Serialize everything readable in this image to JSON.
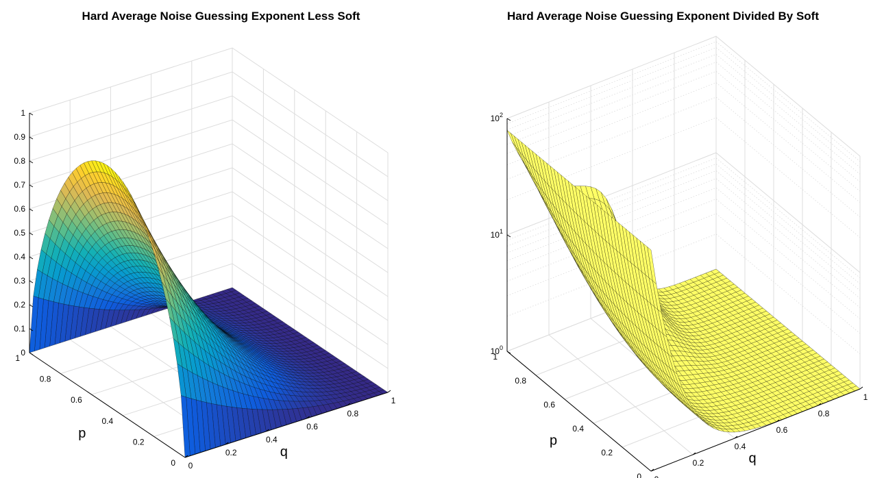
{
  "chart_data": [
    {
      "type": "surface",
      "title": "Hard Average Noise Guessing Exponent Less Soft",
      "xlabel": "q",
      "ylabel": "p",
      "zlabel": "",
      "xlim": [
        0,
        1
      ],
      "ylim": [
        0,
        1
      ],
      "zlim": [
        0,
        1
      ],
      "zscale": "linear",
      "colormap": "parula",
      "grid": true,
      "x_ticks": [
        "0",
        "0.2",
        "0.4",
        "0.6",
        "0.8",
        "1"
      ],
      "y_ticks": [
        "0",
        "0.2",
        "0.4",
        "0.6",
        "0.8",
        "1"
      ],
      "z_ticks": [
        "0",
        "0.1",
        "0.2",
        "0.3",
        "0.4",
        "0.5",
        "0.6",
        "0.7",
        "0.8",
        "0.9",
        "1"
      ],
      "corner_values": [
        {
          "q": 0,
          "p": 0,
          "z": 0
        },
        {
          "q": 1,
          "p": 0,
          "z": 0
        },
        {
          "q": 0,
          "p": 1,
          "z": 0.25
        },
        {
          "q": 1,
          "p": 1,
          "z": 0
        },
        {
          "q": 0,
          "p": 0.5,
          "z": 1.0
        },
        {
          "q": 0.5,
          "p": 0.5,
          "z": 0.5
        }
      ]
    },
    {
      "type": "surface",
      "title": "Hard Average Noise Guessing Exponent Divided By Soft",
      "xlabel": "q",
      "ylabel": "p",
      "zlabel": "",
      "xlim": [
        0,
        1
      ],
      "ylim": [
        0,
        1
      ],
      "zlim": [
        1,
        100
      ],
      "zscale": "log",
      "surface_color": "#ffff66",
      "grid": true,
      "x_ticks": [
        "0",
        "0.2",
        "0.4",
        "0.6",
        "0.8",
        "1"
      ],
      "y_ticks": [
        "0",
        "0.2",
        "0.4",
        "0.6",
        "0.8",
        "1"
      ],
      "z_ticks": [
        {
          "base": "10",
          "exp": "0"
        },
        {
          "base": "10",
          "exp": "1"
        },
        {
          "base": "10",
          "exp": "2"
        }
      ],
      "corner_values": [
        {
          "q": 0,
          "p": 1,
          "z": 85
        },
        {
          "q": 1,
          "p": 1,
          "z": 1
        },
        {
          "q": 0.5,
          "p": 1,
          "z": 15
        },
        {
          "q": 0.5,
          "p": 0.5,
          "z": 2
        }
      ]
    }
  ]
}
